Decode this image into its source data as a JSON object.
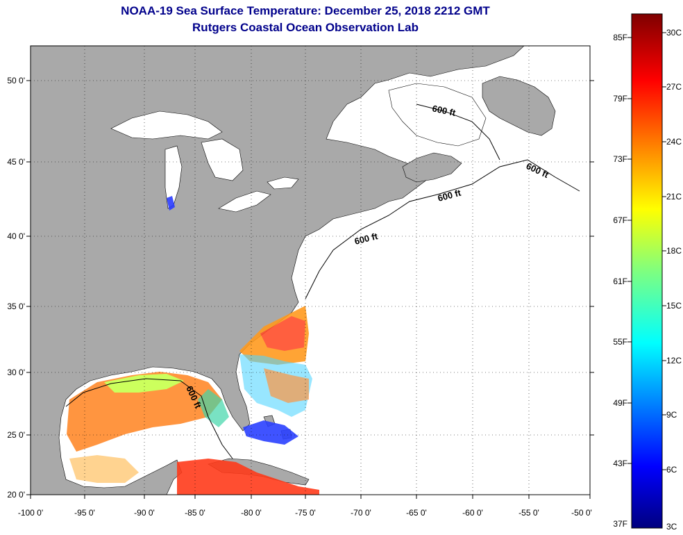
{
  "title": "NOAA-19 Sea Surface Temperature:  December 25, 2018 2212 GMT",
  "subtitle": "Rutgers Coastal Ocean Observation Lab",
  "map": {
    "lon_ticks": [
      "-100 0'",
      "-95 0'",
      "-90 0'",
      "-85 0'",
      "-80 0'",
      "-75 0'",
      "-70 0'",
      "-65 0'",
      "-60 0'",
      "-55 0'",
      "-50 0'"
    ],
    "lat_ticks": [
      "50 0'",
      "45 0'",
      "40 0'",
      "35 0'",
      "30 0'",
      "25 0'",
      "20 0'"
    ],
    "contour_labels": [
      "600 ft",
      "600 ft",
      "600 ft",
      "600 ft",
      "600 ft"
    ],
    "land_color": "#a9a9a9",
    "ocean_color": "#ffffff"
  },
  "colorbar": {
    "fahrenheit": [
      "85F",
      "79F",
      "73F",
      "67F",
      "61F",
      "55F",
      "49F",
      "43F",
      "37F"
    ],
    "celsius": [
      "30C",
      "27C",
      "24C",
      "21C",
      "18C",
      "15C",
      "12C",
      "9C",
      "6C",
      "3C"
    ],
    "colormap": "jet"
  }
}
